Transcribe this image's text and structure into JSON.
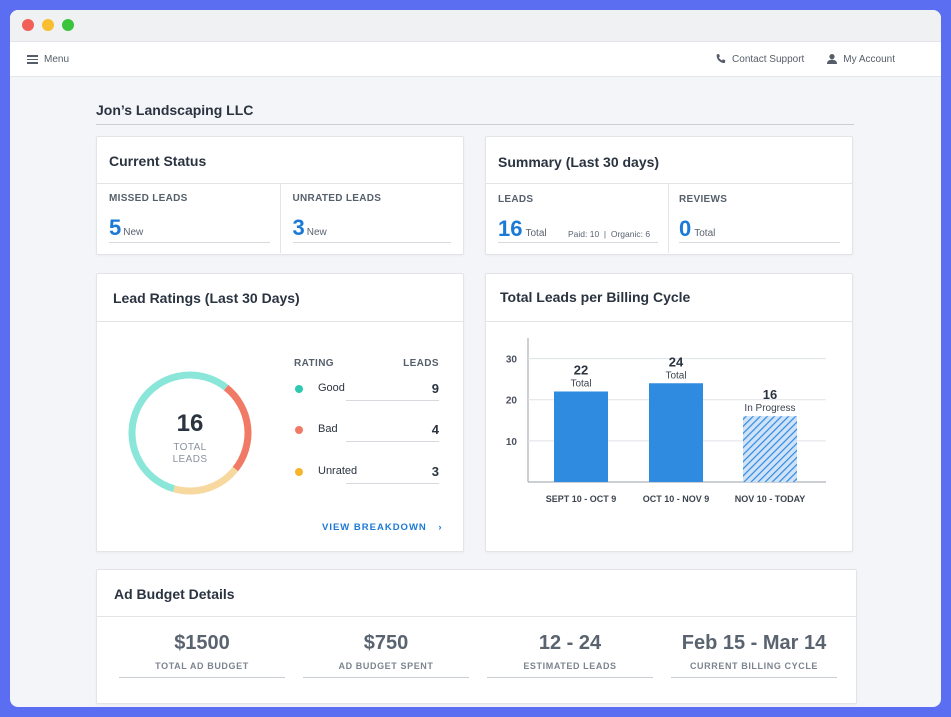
{
  "nav": {
    "menu_label": "Menu",
    "contact_label": "Contact Support",
    "account_label": "My Account"
  },
  "company": "Jon’s Landscaping LLC",
  "current_status": {
    "title": "Current Status",
    "missed": {
      "label": "MISSED LEADS",
      "value": "5",
      "sub": "New"
    },
    "unrated": {
      "label": "UNRATED LEADS",
      "value": "3",
      "sub": "New"
    }
  },
  "summary": {
    "title": "Summary (Last 30 days)",
    "leads": {
      "label": "LEADS",
      "value": "16",
      "sub": "Total",
      "detail": "Paid: 10  |  Organic: 6"
    },
    "reviews": {
      "label": "REVIEWS",
      "value": "0",
      "sub": "Total"
    }
  },
  "lead_ratings": {
    "title": "Lead Ratings (Last 30 Days)",
    "total": "16",
    "total_label_1": "TOTAL",
    "total_label_2": "LEADS",
    "col_rating": "RATING",
    "col_leads": "LEADS",
    "rows": [
      {
        "label": "Good",
        "value": "9",
        "color": "#2ec9b0"
      },
      {
        "label": "Bad",
        "value": "4",
        "color": "#f07a66"
      },
      {
        "label": "Unrated",
        "value": "3",
        "color": "#f7b52c"
      }
    ],
    "donut_colors": {
      "good": "#8ae6d8",
      "bad": "#f07a66",
      "unrated": "#f7d9a0"
    },
    "link": "VIEW BREAKDOWN"
  },
  "billing": {
    "title": "Total Leads per Billing Cycle"
  },
  "chart_data": {
    "type": "bar",
    "categories": [
      "SEPT 10 - OCT 9",
      "OCT 10 - NOV 9",
      "NOV 10 - TODAY"
    ],
    "values": [
      22,
      24,
      16
    ],
    "data_labels": [
      "22",
      "24",
      "16"
    ],
    "bar_notes": [
      "Total",
      "Total",
      "In Progress"
    ],
    "bar_styles": [
      "solid",
      "solid",
      "hatched"
    ],
    "yticks": [
      "10",
      "20",
      "30"
    ],
    "ylim": [
      0,
      35
    ],
    "bar_color": "#2f8be0",
    "xlabel": "",
    "ylabel": ""
  },
  "budget": {
    "title": "Ad Budget Details",
    "items": [
      {
        "value": "$1500",
        "label": "TOTAL AD BUDGET"
      },
      {
        "value": "$750",
        "label": "AD BUDGET SPENT"
      },
      {
        "value": "12 - 24",
        "label": "ESTIMATED LEADS"
      },
      {
        "value": "Feb 15 - Mar 14",
        "label": "CURRENT BILLING CYCLE"
      }
    ]
  }
}
